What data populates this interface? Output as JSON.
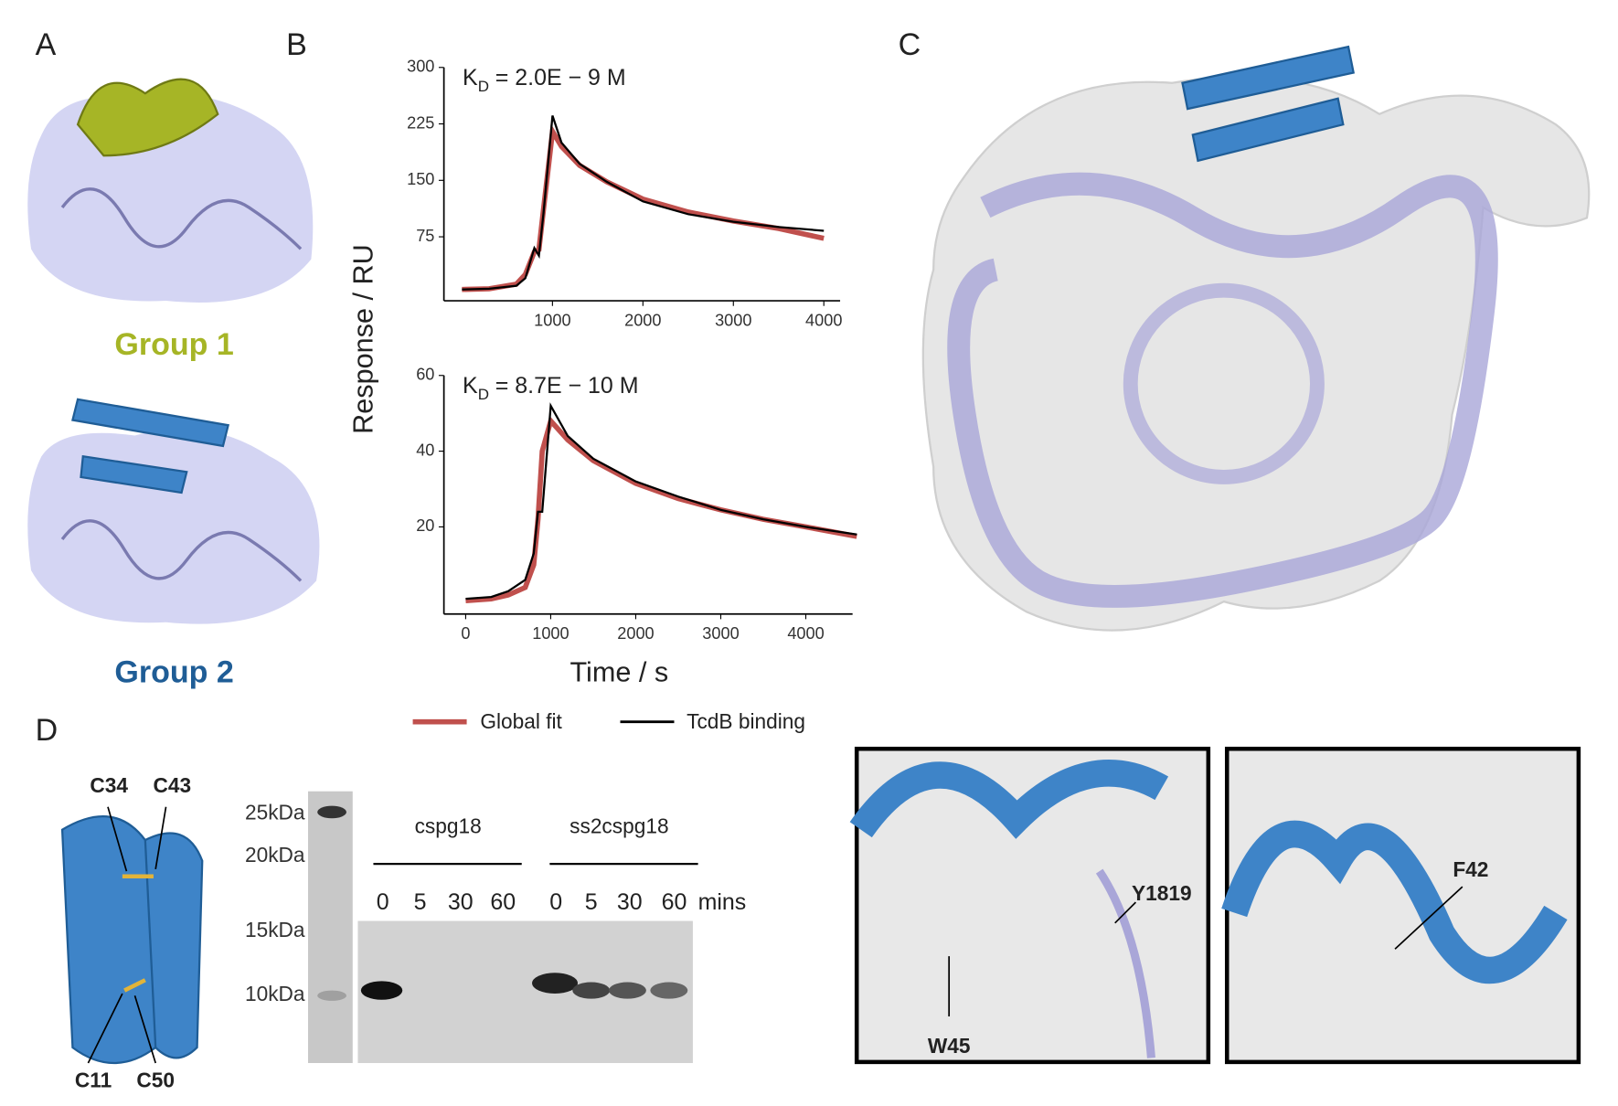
{
  "panels": {
    "a": {
      "label": "A",
      "group1": "Group 1",
      "group2": "Group 2"
    },
    "b": {
      "label": "B"
    },
    "c": {
      "label": "C"
    },
    "d": {
      "label": "D",
      "residues": [
        "C34",
        "C43",
        "C11",
        "C50"
      ],
      "markers": [
        "25kDa",
        "20kDa",
        "15kDa",
        "10kDa"
      ],
      "samples": [
        "cspg18",
        "ss2cspg18"
      ],
      "times": [
        "0",
        "5",
        "30",
        "60",
        "0",
        "5",
        "30",
        "60"
      ],
      "time_unit": "mins",
      "inset_labels": [
        "Y1819",
        "W45",
        "F42"
      ]
    }
  },
  "chart_data": [
    {
      "type": "line",
      "ylabel": "Response / RU",
      "annotation": {
        "symbol": "K",
        "subscript": "D",
        "text": "= 2.0E − 9 M"
      },
      "x": [
        0,
        300,
        600,
        700,
        800,
        850,
        900,
        1000,
        1100,
        1300,
        1600,
        2000,
        2500,
        3000,
        3500,
        4000
      ],
      "xlim": [
        -200,
        4180
      ],
      "xticks": [
        1000,
        2000,
        3000,
        4000
      ],
      "ylim": [
        -10,
        300
      ],
      "yticks": [
        75,
        150,
        225,
        300
      ],
      "series": [
        {
          "name": "Global fit",
          "color": "#c0504d",
          "values": [
            5,
            6,
            12,
            25,
            55,
            58,
            110,
            215,
            195,
            170,
            148,
            125,
            108,
            96,
            86,
            73
          ]
        },
        {
          "name": "TcdB binding",
          "color": "#000000",
          "values": [
            5,
            6,
            10,
            20,
            60,
            50,
            105,
            236,
            200,
            172,
            148,
            122,
            105,
            95,
            88,
            83
          ]
        }
      ]
    },
    {
      "type": "line",
      "xlabel": "Time / s",
      "annotation": {
        "symbol": "K",
        "subscript": "D",
        "text": "= 8.7E − 10 M"
      },
      "x": [
        0,
        300,
        500,
        700,
        800,
        850,
        900,
        1000,
        1200,
        1500,
        2000,
        2500,
        3000,
        3500,
        4000,
        4600
      ],
      "xlim": [
        -256,
        4550
      ],
      "xticks": [
        0,
        1000,
        2000,
        3000,
        4000
      ],
      "ylim": [
        -3,
        60
      ],
      "yticks": [
        20,
        40,
        60
      ],
      "series": [
        {
          "color": "#c0504d",
          "values": [
            0.5,
            1,
            2,
            4,
            10,
            22,
            40,
            48,
            43,
            37.5,
            31.5,
            27.5,
            24.5,
            22,
            20,
            17.5
          ]
        },
        {
          "color": "#000000",
          "values": [
            1,
            1.5,
            3,
            6,
            13,
            24,
            24,
            52,
            44,
            38,
            32,
            28,
            24.5,
            22,
            20,
            18
          ]
        }
      ]
    }
  ]
}
